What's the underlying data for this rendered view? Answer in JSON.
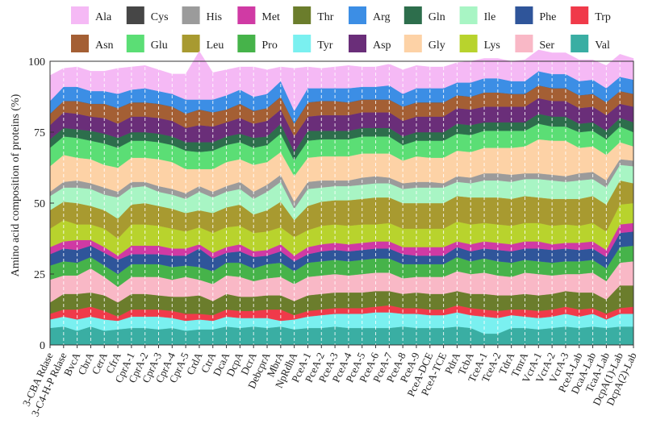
{
  "chart_data": {
    "type": "area",
    "stacked": true,
    "ylabel": "Amino acid composition of proteins (%)",
    "xlabel": "",
    "ylim": [
      0,
      100
    ],
    "yticks": [
      0,
      25,
      50,
      75,
      100
    ],
    "grid": "vertical dashed white",
    "legend_position": "top",
    "categories": [
      "3-CBA Rdase",
      "3-C4-H-P Rdase",
      "BvcA",
      "CbrA",
      "CerA",
      "CfrA",
      "CprA-1",
      "CprA-2",
      "CprA-3",
      "CprA-4",
      "CprA-5",
      "CrdA",
      "CtrA",
      "DcaA",
      "DcpA",
      "DcrA",
      "DebcprA",
      "MbrA",
      "NpRdhA",
      "PceA-1",
      "PceA-2",
      "PceA-3",
      "PceA-4",
      "PceA-5",
      "PceA-6",
      "PceA-7",
      "PceA-8",
      "PceA-9",
      "PceA-DCE",
      "PceA-TCE",
      "PdrA",
      "TcbA",
      "TceA-1",
      "TceA-2",
      "TdrA",
      "TmrA",
      "VcrA-1",
      "VcrA-2",
      "VcrA-3",
      "PceA-Lab",
      "DcaA-Lab",
      "TcaA-Lab",
      "DcpA(1)-Lab",
      "DcpA(2)-Lab"
    ],
    "series": [
      {
        "name": "Val",
        "color": "#3aaea3",
        "values": [
          6.0,
          6.5,
          5.0,
          6.5,
          5.0,
          5.5,
          6.0,
          6.0,
          5.5,
          6.0,
          5.0,
          5.5,
          5.5,
          6.5,
          6.0,
          6.5,
          6.0,
          6.5,
          5.5,
          6.0,
          6.0,
          6.5,
          6.0,
          6.0,
          6.0,
          6.0,
          6.5,
          6.0,
          6.0,
          6.0,
          6.5,
          6.0,
          4.0,
          4.0,
          6.0,
          6.0,
          5.5,
          6.0,
          6.5,
          6.0,
          6.5,
          6.0,
          6.5,
          6.5
        ]
      },
      {
        "name": "Tyr",
        "color": "#7af0f0",
        "values": [
          3.0,
          3.5,
          4.0,
          3.5,
          4.0,
          3.0,
          4.0,
          4.0,
          4.5,
          3.5,
          3.5,
          3.5,
          3.0,
          3.5,
          3.5,
          3.0,
          3.5,
          2.0,
          3.5,
          4.0,
          4.5,
          4.5,
          5.0,
          5.0,
          5.5,
          5.5,
          4.5,
          5.0,
          4.5,
          4.5,
          5.0,
          4.5,
          6.0,
          5.5,
          4.5,
          4.0,
          4.0,
          4.0,
          4.5,
          4.0,
          4.5,
          3.0,
          4.5,
          4.5
        ]
      },
      {
        "name": "Trp",
        "color": "#f03a4a",
        "values": [
          2.0,
          2.5,
          3.5,
          3.5,
          3.0,
          1.5,
          2.5,
          2.5,
          2.5,
          2.5,
          2.5,
          2.0,
          2.0,
          2.5,
          2.5,
          2.5,
          3.0,
          4.0,
          1.5,
          2.0,
          2.0,
          2.0,
          2.0,
          2.0,
          2.0,
          2.5,
          2.0,
          2.0,
          2.0,
          2.0,
          2.5,
          2.5,
          2.5,
          2.5,
          2.0,
          2.5,
          2.5,
          2.5,
          2.5,
          2.5,
          2.0,
          2.0,
          2.0,
          2.5
        ]
      },
      {
        "name": "Thr",
        "color": "#6b7d2c",
        "values": [
          4.0,
          5.5,
          5.5,
          5.0,
          5.5,
          5.0,
          5.5,
          5.5,
          5.0,
          5.0,
          6.0,
          6.5,
          5.0,
          5.5,
          5.0,
          5.0,
          5.0,
          5.0,
          5.0,
          5.5,
          5.5,
          5.5,
          5.5,
          5.5,
          5.5,
          5.0,
          5.0,
          5.5,
          5.5,
          5.5,
          5.0,
          5.0,
          5.5,
          5.5,
          5.0,
          5.5,
          5.5,
          5.5,
          5.5,
          6.0,
          5.5,
          5.0,
          8.0,
          7.5
        ]
      },
      {
        "name": "Ser",
        "color": "#f9b8c6",
        "values": [
          8.0,
          6.5,
          6.5,
          8.5,
          6.5,
          5.5,
          6.0,
          6.0,
          6.5,
          6.0,
          7.0,
          5.5,
          6.0,
          6.5,
          7.0,
          5.5,
          6.0,
          6.5,
          6.0,
          6.5,
          6.5,
          6.5,
          6.0,
          6.5,
          6.5,
          6.5,
          5.5,
          5.5,
          6.0,
          6.0,
          7.0,
          7.0,
          7.5,
          7.0,
          6.5,
          7.5,
          7.5,
          6.5,
          6.0,
          6.5,
          7.0,
          6.5,
          8.0,
          8.5
        ]
      },
      {
        "name": "Pro",
        "color": "#46b34a",
        "values": [
          5.0,
          5.0,
          4.5,
          4.0,
          4.0,
          4.5,
          4.5,
          4.5,
          4.5,
          4.5,
          4.0,
          4.5,
          4.5,
          4.5,
          5.0,
          4.5,
          5.0,
          5.0,
          4.5,
          5.0,
          5.0,
          5.0,
          5.0,
          5.0,
          5.0,
          5.0,
          5.0,
          4.5,
          4.5,
          4.5,
          5.0,
          4.5,
          5.0,
          5.0,
          5.0,
          4.5,
          4.5,
          4.5,
          4.5,
          4.5,
          4.5,
          4.5,
          5.5,
          5.5
        ]
      },
      {
        "name": "Phe",
        "color": "#2f559a",
        "values": [
          4.0,
          4.5,
          4.5,
          4.0,
          4.5,
          5.0,
          3.5,
          3.5,
          3.5,
          4.0,
          3.5,
          6.5,
          4.5,
          3.5,
          4.0,
          4.0,
          3.0,
          4.0,
          3.5,
          3.0,
          3.5,
          3.5,
          3.5,
          3.5,
          3.5,
          3.5,
          3.5,
          3.0,
          3.0,
          3.0,
          3.5,
          3.5,
          3.5,
          4.0,
          4.0,
          4.0,
          4.5,
          4.5,
          4.5,
          4.0,
          4.0,
          4.0,
          5.0,
          5.0
        ]
      },
      {
        "name": "Met",
        "color": "#d03aa4",
        "values": [
          2.5,
          2.5,
          3.5,
          2.0,
          2.0,
          1.5,
          3.0,
          3.0,
          3.0,
          2.5,
          2.5,
          1.5,
          2.0,
          2.0,
          2.5,
          2.0,
          2.0,
          2.5,
          2.0,
          2.5,
          2.5,
          2.5,
          2.5,
          2.5,
          2.5,
          2.5,
          2.5,
          3.0,
          3.0,
          3.0,
          2.0,
          2.5,
          2.5,
          2.5,
          2.5,
          2.5,
          2.5,
          2.0,
          2.0,
          2.5,
          2.5,
          2.5,
          3.0,
          3.0
        ]
      },
      {
        "name": "Lys",
        "color": "#b8d32d",
        "values": [
          6.5,
          7.5,
          5.5,
          5.5,
          6.5,
          6.0,
          7.5,
          7.5,
          7.0,
          7.0,
          6.0,
          6.0,
          7.0,
          7.0,
          6.5,
          6.5,
          6.5,
          6.0,
          6.5,
          6.0,
          6.5,
          6.5,
          6.5,
          6.5,
          6.0,
          6.5,
          6.5,
          6.5,
          6.5,
          6.5,
          7.0,
          7.0,
          6.5,
          6.5,
          6.5,
          6.5,
          6.5,
          6.5,
          6.5,
          6.0,
          6.5,
          6.5,
          7.0,
          7.0
        ]
      },
      {
        "name": "Leu",
        "color": "#a89a30",
        "values": [
          6.5,
          6.5,
          7.5,
          6.5,
          6.5,
          7.0,
          7.0,
          7.5,
          7.0,
          7.0,
          6.5,
          6.0,
          7.0,
          7.0,
          7.5,
          6.5,
          7.5,
          9.0,
          6.0,
          8.5,
          8.5,
          8.5,
          9.0,
          9.0,
          9.5,
          9.0,
          9.0,
          9.0,
          9.0,
          9.0,
          9.0,
          9.5,
          9.0,
          9.5,
          9.5,
          9.5,
          9.0,
          9.5,
          9.0,
          9.5,
          9.5,
          9.5,
          8.5,
          7.0
        ]
      },
      {
        "name": "Ile",
        "color": "#a8f5c4",
        "values": [
          5.0,
          5.0,
          5.5,
          6.0,
          5.5,
          7.5,
          6.0,
          6.0,
          5.0,
          5.0,
          5.0,
          6.5,
          5.5,
          5.5,
          5.5,
          5.5,
          6.5,
          7.0,
          4.0,
          6.0,
          5.0,
          5.0,
          5.0,
          5.0,
          5.0,
          5.0,
          5.0,
          5.5,
          5.5,
          5.5,
          5.0,
          5.0,
          6.0,
          6.0,
          6.0,
          6.0,
          6.5,
          6.5,
          6.0,
          6.5,
          6.0,
          6.0,
          5.5,
          6.0
        ]
      },
      {
        "name": "His",
        "color": "#9b9b9b",
        "values": [
          1.5,
          2.0,
          2.5,
          2.0,
          2.5,
          2.0,
          2.0,
          1.5,
          2.0,
          2.0,
          2.0,
          2.0,
          2.0,
          2.0,
          2.5,
          2.5,
          2.5,
          2.5,
          2.5,
          2.5,
          2.5,
          2.0,
          2.0,
          2.5,
          2.5,
          2.0,
          2.0,
          2.0,
          2.0,
          1.5,
          2.0,
          2.0,
          2.5,
          2.5,
          2.5,
          2.0,
          2.0,
          2.0,
          2.0,
          2.5,
          2.5,
          2.5,
          2.0,
          2.0
        ]
      },
      {
        "name": "Gly",
        "color": "#fdd2a6",
        "values": [
          9.0,
          9.5,
          8.0,
          8.5,
          8.0,
          8.5,
          8.5,
          8.5,
          9.5,
          9.5,
          8.5,
          6.0,
          8.0,
          8.5,
          8.0,
          9.5,
          8.0,
          8.0,
          9.0,
          8.5,
          8.5,
          8.5,
          8.5,
          8.5,
          8.0,
          8.5,
          8.0,
          9.0,
          8.5,
          9.0,
          9.0,
          9.0,
          9.0,
          9.0,
          9.5,
          9.5,
          12.0,
          12.0,
          12.5,
          9.0,
          9.0,
          9.0,
          6.0,
          5.0
        ]
      },
      {
        "name": "Glu",
        "color": "#5bde75",
        "values": [
          6.5,
          6.5,
          7.0,
          6.5,
          7.5,
          7.0,
          6.0,
          6.0,
          6.0,
          6.0,
          6.5,
          6.0,
          6.5,
          6.0,
          6.0,
          6.0,
          6.0,
          6.5,
          5.5,
          6.0,
          6.0,
          6.0,
          6.0,
          6.0,
          6.0,
          6.0,
          5.5,
          5.5,
          6.0,
          6.0,
          6.0,
          6.0,
          6.0,
          6.0,
          6.0,
          5.5,
          5.5,
          5.0,
          5.0,
          5.5,
          5.5,
          5.5,
          5.5,
          5.0
        ]
      },
      {
        "name": "Gln",
        "color": "#2d6e4c",
        "values": [
          3.0,
          3.0,
          3.0,
          3.5,
          3.5,
          3.5,
          3.0,
          3.0,
          3.0,
          3.0,
          3.0,
          3.5,
          3.0,
          3.0,
          3.0,
          3.5,
          3.0,
          3.5,
          3.0,
          3.5,
          3.0,
          3.0,
          3.0,
          3.0,
          3.0,
          3.0,
          3.0,
          3.0,
          3.0,
          3.0,
          3.5,
          3.5,
          3.0,
          3.0,
          3.0,
          3.0,
          3.5,
          3.5,
          3.5,
          3.0,
          3.0,
          3.0,
          3.0,
          3.5
        ]
      },
      {
        "name": "Asp",
        "color": "#6a2e79",
        "values": [
          5.0,
          5.5,
          5.5,
          5.0,
          5.5,
          5.0,
          5.5,
          5.5,
          5.5,
          5.5,
          5.0,
          6.0,
          5.5,
          5.0,
          5.5,
          5.0,
          5.5,
          5.0,
          5.5,
          5.0,
          5.5,
          5.5,
          5.5,
          5.5,
          5.5,
          5.5,
          5.5,
          5.5,
          5.5,
          5.5,
          5.5,
          5.5,
          5.5,
          5.5,
          5.5,
          5.5,
          5.5,
          5.5,
          5.5,
          5.5,
          5.5,
          5.5,
          5.0,
          5.5
        ]
      },
      {
        "name": "Asn",
        "color": "#a45f34",
        "values": [
          4.0,
          4.0,
          4.5,
          4.5,
          5.0,
          5.5,
          5.0,
          5.0,
          5.0,
          5.0,
          5.0,
          5.5,
          5.0,
          4.5,
          5.0,
          4.5,
          4.5,
          4.5,
          4.5,
          5.0,
          5.0,
          5.0,
          4.5,
          4.5,
          4.5,
          4.5,
          5.0,
          5.0,
          5.0,
          5.0,
          4.5,
          4.5,
          5.0,
          5.0,
          4.5,
          4.5,
          4.5,
          4.5,
          4.5,
          4.5,
          4.5,
          4.5,
          4.5,
          4.5
        ]
      },
      {
        "name": "Cys",
        "color": "#464646",
        "values": [
          0.0,
          0.0,
          0.0,
          0.0,
          0.0,
          0.0,
          0.0,
          0.0,
          0.0,
          0.0,
          0.0,
          0.0,
          0.0,
          0.0,
          0.0,
          0.0,
          0.0,
          0.0,
          0.0,
          0.0,
          0.0,
          0.0,
          0.0,
          0.0,
          0.0,
          0.0,
          0.0,
          0.0,
          0.0,
          0.0,
          0.0,
          0.0,
          0.0,
          0.0,
          0.0,
          0.0,
          0.0,
          0.0,
          0.0,
          0.0,
          0.0,
          0.0,
          0.0,
          0.0
        ]
      },
      {
        "name": "Arg",
        "color": "#3c8ee5",
        "values": [
          4.5,
          5.0,
          5.0,
          4.5,
          4.5,
          5.0,
          4.5,
          5.0,
          4.5,
          4.5,
          5.0,
          3.5,
          4.5,
          5.0,
          5.0,
          5.0,
          5.0,
          5.5,
          4.5,
          5.0,
          4.5,
          4.5,
          5.0,
          4.5,
          4.5,
          5.0,
          4.5,
          5.0,
          5.0,
          5.0,
          4.5,
          5.0,
          5.0,
          5.0,
          4.5,
          4.5,
          5.0,
          5.0,
          5.0,
          5.0,
          5.0,
          5.0,
          5.0,
          5.0
        ]
      },
      {
        "name": "Ala",
        "color": "#f5b9f5",
        "values": [
          9.0,
          6.5,
          7.0,
          7.0,
          7.0,
          9.0,
          8.0,
          8.0,
          7.5,
          7.0,
          9.0,
          17.0,
          9.5,
          9.0,
          8.0,
          10.5,
          8.5,
          5.0,
          15.0,
          7.5,
          7.0,
          7.5,
          8.0,
          7.0,
          7.0,
          7.5,
          8.5,
          8.0,
          7.5,
          7.5,
          7.0,
          7.5,
          7.0,
          7.0,
          7.0,
          7.5,
          7.5,
          7.5,
          7.5,
          7.5,
          7.0,
          8.0,
          8.0,
          7.5
        ]
      }
    ],
    "legend": {
      "rows": [
        [
          {
            "name": "Ala",
            "color": "#f5b9f5"
          },
          {
            "name": "Cys",
            "color": "#464646"
          },
          {
            "name": "His",
            "color": "#9b9b9b"
          },
          {
            "name": "Met",
            "color": "#d03aa4"
          },
          {
            "name": "Thr",
            "color": "#6b7d2c"
          },
          {
            "name": "Arg",
            "color": "#3c8ee5"
          },
          {
            "name": "Gln",
            "color": "#2d6e4c"
          },
          {
            "name": "Ile",
            "color": "#a8f5c4"
          },
          {
            "name": "Phe",
            "color": "#2f559a"
          },
          {
            "name": "Trp",
            "color": "#f03a4a"
          }
        ],
        [
          {
            "name": "Asn",
            "color": "#a45f34"
          },
          {
            "name": "Glu",
            "color": "#5bde75"
          },
          {
            "name": "Leu",
            "color": "#a89a30"
          },
          {
            "name": "Pro",
            "color": "#46b34a"
          },
          {
            "name": "Tyr",
            "color": "#7af0f0"
          },
          {
            "name": "Asp",
            "color": "#6a2e79"
          },
          {
            "name": "Gly",
            "color": "#fdd2a6"
          },
          {
            "name": "Lys",
            "color": "#b8d32d"
          },
          {
            "name": "Ser",
            "color": "#f9b8c6"
          },
          {
            "name": "Val",
            "color": "#3aaea3"
          }
        ]
      ]
    }
  }
}
